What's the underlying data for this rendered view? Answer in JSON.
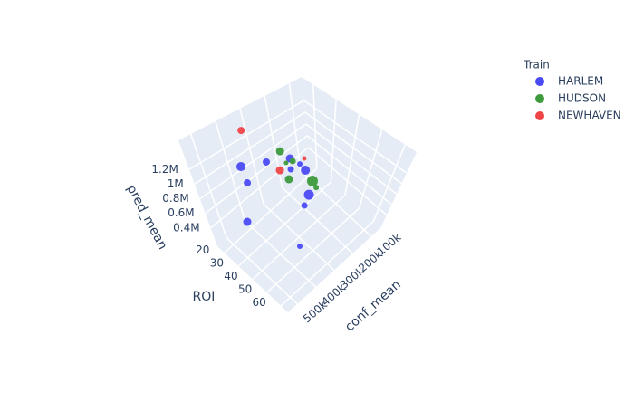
{
  "chart_data": {
    "type": "scatter3d",
    "xaxis_title": "conf_mean",
    "yaxis_title": "ROI",
    "zaxis_title": "pred_mean",
    "legend_title": "Train",
    "xlim": [
      50000,
      550000
    ],
    "ylim": [
      15,
      65
    ],
    "zlim": [
      150000,
      1600000
    ],
    "xticks": [
      {
        "value": 100000,
        "label": "100k"
      },
      {
        "value": 200000,
        "label": "200k"
      },
      {
        "value": 300000,
        "label": "300k"
      },
      {
        "value": 400000,
        "label": "400k"
      },
      {
        "value": 500000,
        "label": "500k"
      }
    ],
    "yticks": [
      20,
      30,
      40,
      50,
      60
    ],
    "zticks": [
      {
        "value": 400000,
        "label": "0.4M"
      },
      {
        "value": 600000,
        "label": "0.6M"
      },
      {
        "value": 800000,
        "label": "0.8M"
      },
      {
        "value": 1000000,
        "label": "1M"
      },
      {
        "value": 1200000,
        "label": "1.2M"
      }
    ],
    "grid": true,
    "legend_position": "top-right",
    "series": [
      {
        "name": "HARLEM",
        "color": "#4b4bf5",
        "x": [
          385000,
          309000,
          370500,
          418500,
          213500,
          219500,
          159500,
          207000,
          226500,
          244000,
          337500
        ],
        "y": [
          20.3,
          24.7,
          19.5,
          20.8,
          25.5,
          26.2,
          27.1,
          30.1,
          37.3,
          36.7,
          45.5
        ],
        "z": [
          1020000,
          1020000,
          730000,
          295000,
          875000,
          730000,
          585000,
          875000,
          585000,
          440000,
          222500
        ],
        "sizes": [
          5,
          4,
          4,
          4.5,
          4.5,
          3.5,
          5,
          3,
          5.5,
          3.5,
          3
        ]
      },
      {
        "name": "HUDSON",
        "color": "#3d9a3d",
        "x": [
          241000,
          237000,
          215500,
          255500,
          175000,
          185500
        ],
        "y": [
          24.0,
          26.2,
          27.2,
          29.4,
          33.2,
          36.7
        ],
        "z": [
          1020000,
          875000,
          875000,
          730000,
          585000,
          585000
        ],
        "sizes": [
          4.5,
          2.5,
          3.5,
          4.5,
          6,
          3
        ]
      },
      {
        "name": "NEWHAVEN",
        "color": "#ee4646",
        "x": [
          345000,
          249500,
          206000
        ],
        "y": [
          19.3,
          23.6,
          32.5
        ],
        "z": [
          1455000,
          730000,
          1020000
        ],
        "sizes": [
          4,
          4.5,
          2.5
        ]
      }
    ]
  }
}
